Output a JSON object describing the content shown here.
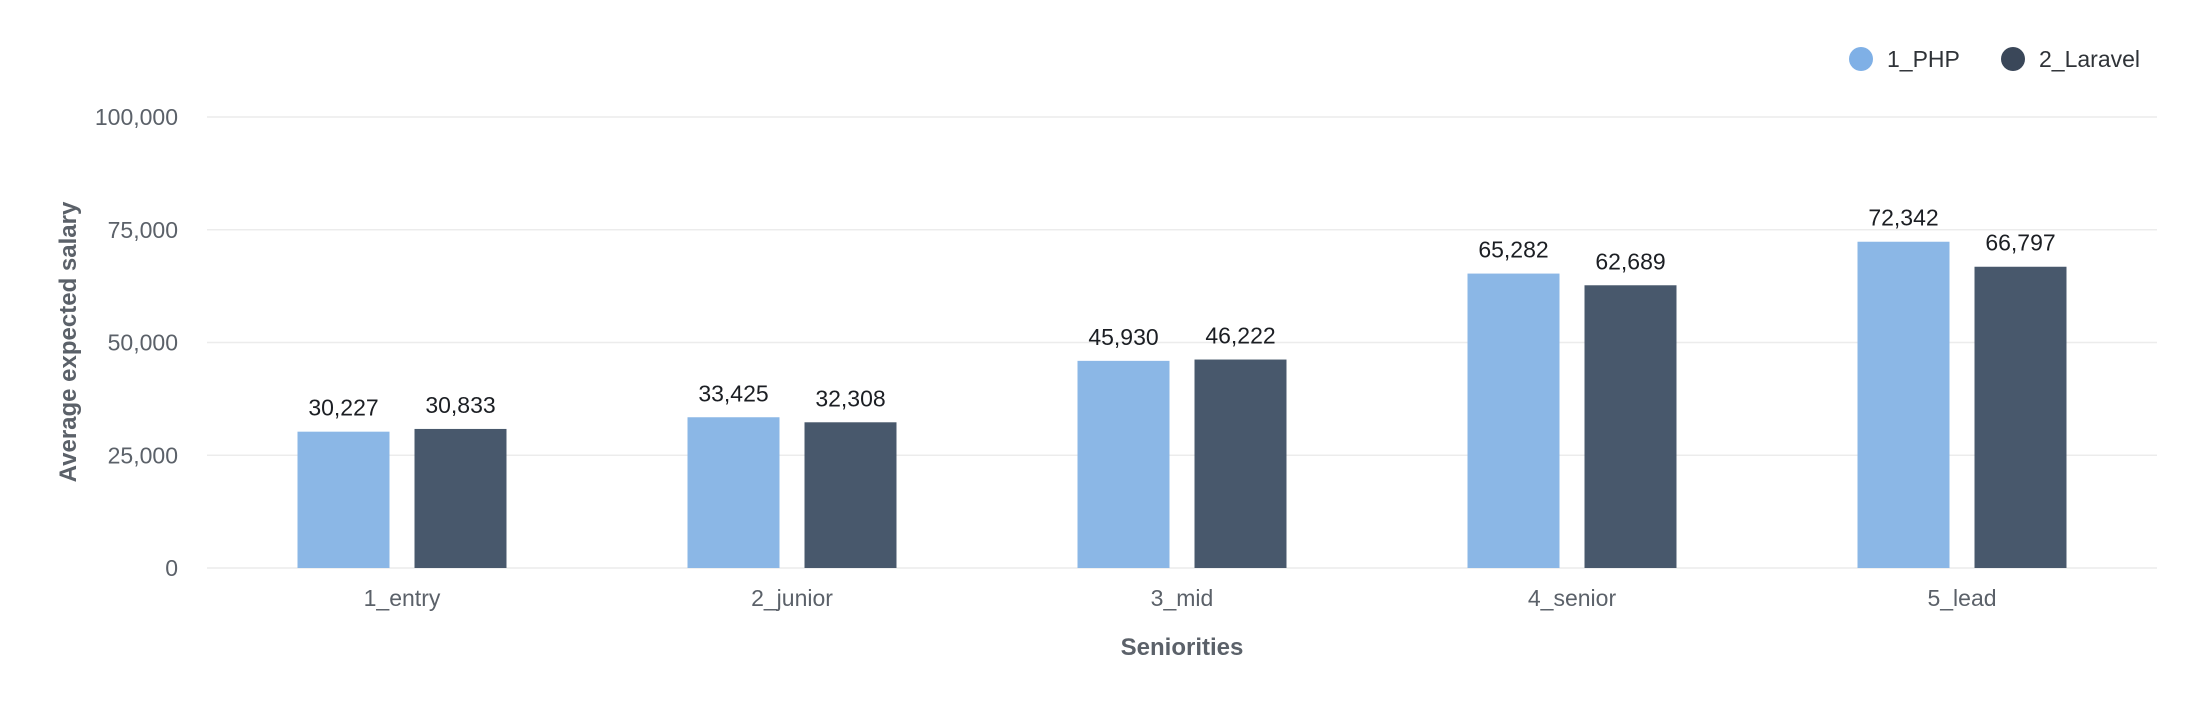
{
  "chart_data": {
    "type": "bar",
    "title": "",
    "xlabel": "Seniorities",
    "ylabel": "Average expected salary",
    "categories": [
      "1_entry",
      "2_junior",
      "3_mid",
      "4_senior",
      "5_lead"
    ],
    "series": [
      {
        "name": "1_PHP",
        "color": "#8bb7e6",
        "values": [
          30227,
          33425,
          45930,
          65282,
          72342
        ],
        "labels": [
          "30,227",
          "33,425",
          "45,930",
          "65,282",
          "72,342"
        ]
      },
      {
        "name": "2_Laravel",
        "color": "#48586c",
        "values": [
          30833,
          32308,
          46222,
          62689,
          66797
        ],
        "labels": [
          "30,833",
          "32,308",
          "46,222",
          "62,689",
          "66,797"
        ]
      }
    ],
    "ylim": [
      0,
      100000
    ],
    "yticks": [
      0,
      25000,
      50000,
      75000,
      100000
    ],
    "ytick_labels": [
      "0",
      "25,000",
      "50,000",
      "75,000",
      "100,000"
    ],
    "grid": true,
    "legend_position": "top-right",
    "legend_marker_colors": [
      "#7fb0e6",
      "#3a4759"
    ]
  }
}
